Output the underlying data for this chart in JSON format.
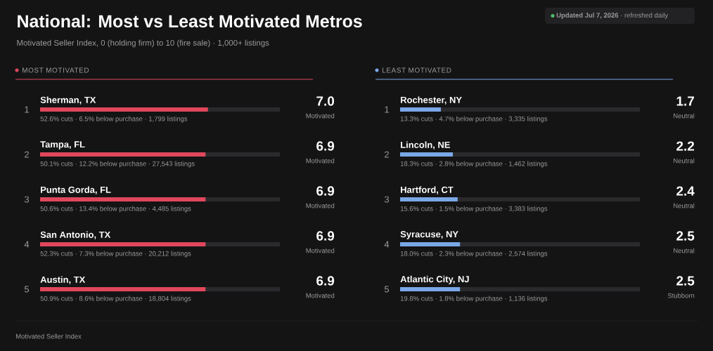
{
  "chart_data": [
    {
      "type": "other",
      "title": "National: Most vs Least Motivated Metros",
      "subtitle": "Motivated Seller Index, 0 (holding firm) to 10 (fire sale) · 1,000+ listings",
      "annotations": [
        "**Updated Jul 7, 2026** · refreshed daily",
        "Motivated Seller Index"
      ]
    },
    {
      "type": "bar",
      "orientation": "horizontal",
      "title": "MOST MOTIVATED",
      "color": "#e0475c",
      "categories": [
        "Sherman, TX",
        "Tampa, FL",
        "Punta Gorda, FL",
        "San Antonio, TX",
        "Austin, TX"
      ],
      "values": [
        7.0,
        6.9,
        6.9,
        6.9,
        6.9
      ],
      "xlim": [
        0,
        10
      ],
      "value_labels": [
        "7.0",
        "6.9",
        "6.9",
        "6.9",
        "6.9"
      ],
      "tick_labels": "y",
      "annotations": [
        "1",
        "52.6% cuts · 6.5% below purchase · 1,799 listings",
        "Motivated",
        "2",
        "50.1% cuts · 12.2% below purchase · 27,543 listings",
        "Motivated",
        "3",
        "50.6% cuts · 13.4% below purchase · 4,485 listings",
        "Motivated",
        "4",
        "52.3% cuts · 7.3% below purchase · 20,212 listings",
        "Motivated",
        "5",
        "50.9% cuts · 8.6% below purchase · 18,804 listings",
        "Motivated"
      ]
    },
    {
      "type": "bar",
      "orientation": "horizontal",
      "title": "LEAST MOTIVATED",
      "color": "#7aa7e6",
      "categories": [
        "Rochester, NY",
        "Lincoln, NE",
        "Hartford, CT",
        "Syracuse, NY",
        "Atlantic City, NJ"
      ],
      "values": [
        1.7,
        2.2,
        2.4,
        2.5,
        2.5
      ],
      "xlim": [
        0,
        10
      ],
      "value_labels": [
        "1.7",
        "2.2",
        "2.4",
        "2.5",
        "2.5"
      ],
      "tick_labels": "y",
      "annotations": [
        "1",
        "13.3% cuts · 4.7% below purchase · 3,335 listings",
        "Neutral",
        "2",
        "18.3% cuts · 2.8% below purchase · 1,462 listings",
        "Neutral",
        "3",
        "15.6% cuts · 1.5% below purchase · 3,383 listings",
        "Neutral",
        "4",
        "18.0% cuts · 2.3% below purchase · 2,574 listings",
        "Neutral",
        "5",
        "19.8% cuts · 1.8% below purchase · 1,136 listings",
        "Stubborn"
      ]
    }
  ]
}
